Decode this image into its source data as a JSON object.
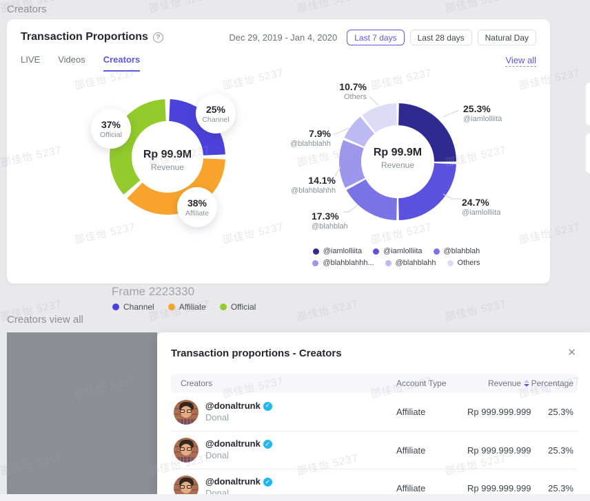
{
  "page": {
    "top_label": "Creators",
    "frame_label": "Frame 2223330",
    "section_label": "Creators view all",
    "watermark_text": "邵佳怡 5237"
  },
  "card": {
    "title": "Transaction Proportions",
    "date_range": "Dec 29, 2019 - Jan 4, 2020",
    "range_buttons": [
      {
        "label": "Last 7 days",
        "active": true
      },
      {
        "label": "Last 28 days",
        "active": false
      },
      {
        "label": "Natural Day",
        "active": false
      }
    ],
    "tabs": [
      {
        "label": "LIVE",
        "active": false
      },
      {
        "label": "Videos",
        "active": false
      },
      {
        "label": "Creators",
        "active": true
      }
    ],
    "view_all_label": "View all"
  },
  "chart_data": [
    {
      "type": "pie",
      "subtype": "donut",
      "center_value": "Rp 99.9M",
      "center_label": "Revenue",
      "segments": [
        {
          "label": "Channel",
          "value": 25,
          "pct_text": "25%",
          "color": "#4B42DC"
        },
        {
          "label": "Affiliate",
          "value": 38,
          "pct_text": "38%",
          "color": "#F8A42C"
        },
        {
          "label": "Official",
          "value": 37,
          "pct_text": "37%",
          "color": "#93CB2D"
        }
      ]
    },
    {
      "type": "pie",
      "subtype": "donut",
      "center_value": "Rp 99.9M",
      "center_label": "Revenue",
      "segments": [
        {
          "label": "@iamlolliita",
          "value": 25.3,
          "pct_text": "25.3%",
          "color": "#2E2A8F"
        },
        {
          "label": "@iamlolliita",
          "value": 24.7,
          "pct_text": "24.7%",
          "color": "#5A52DE"
        },
        {
          "label": "@blahblah",
          "value": 17.3,
          "pct_text": "17.3%",
          "color": "#7A73E6"
        },
        {
          "label": "@blahblahhh",
          "value": 14.1,
          "pct_text": "14.1%",
          "color": "#9C97ED"
        },
        {
          "label": "@blahblahh",
          "value": 7.9,
          "pct_text": "7.9%",
          "color": "#BCB9F3"
        },
        {
          "label": "Others",
          "value": 10.7,
          "pct_text": "10.7%",
          "color": "#DCDCF7"
        }
      ],
      "legend": [
        "@iamlolliita",
        "@iamlolliita",
        "@blahblah",
        "@blahblahhh...",
        "@blahblahh",
        "Others"
      ]
    }
  ],
  "frame_legend": [
    {
      "label": "Channel",
      "color": "#4B42DC"
    },
    {
      "label": "Affiliate",
      "color": "#F8A42C"
    },
    {
      "label": "Official",
      "color": "#93CB2D"
    }
  ],
  "modal": {
    "title": "Transaction proportions - Creators",
    "columns": [
      "Creators",
      "Account Type",
      "Revenue",
      "Percentage"
    ],
    "rows": [
      {
        "handle": "@donaltrunk",
        "verified": true,
        "name": "Donal",
        "account_type": "Affiliate",
        "revenue": "Rp 999.999.999",
        "percentage": "25.3%"
      },
      {
        "handle": "@donaltrunk",
        "verified": true,
        "name": "Donal",
        "account_type": "Affiliate",
        "revenue": "Rp 999.999.999",
        "percentage": "25.3%"
      },
      {
        "handle": "@donaltrunk",
        "verified": true,
        "name": "Donal",
        "account_type": "Affiliate",
        "revenue": "Rp 999.999.999",
        "percentage": "25.3%"
      }
    ]
  }
}
